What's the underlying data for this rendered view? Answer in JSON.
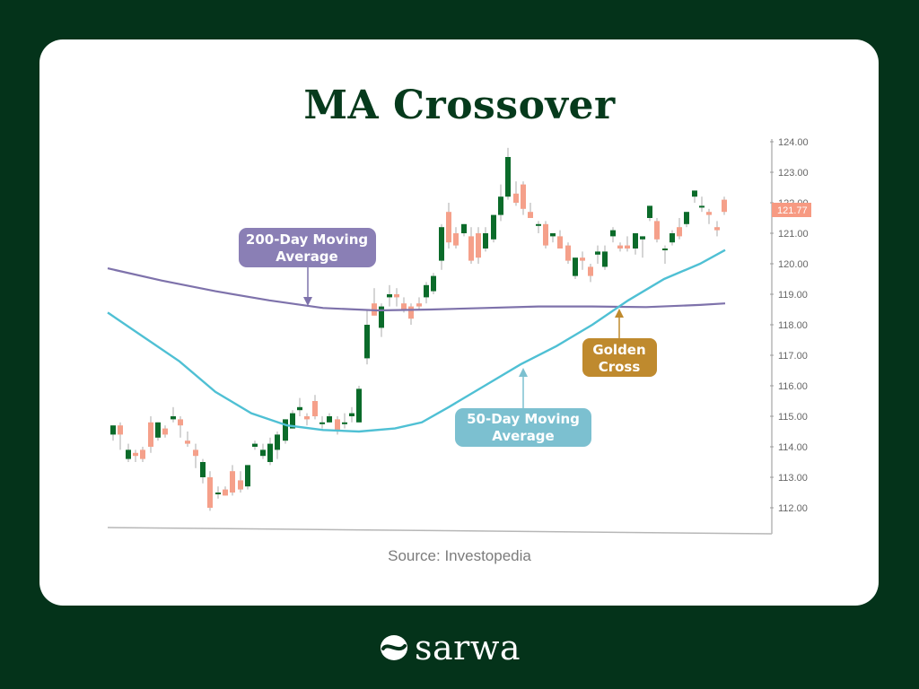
{
  "title": "MA Crossover",
  "source": "Source: Investopedia",
  "brand": {
    "name": "sarwa",
    "logo_icon": "sarwa-logo-icon"
  },
  "colors": {
    "background": "#04331a",
    "card": "#ffffff",
    "title": "#063a1c",
    "bull": "#0b6b2a",
    "bear": "#f5a08a",
    "ma200": "#7e72ab",
    "ma50": "#4fc0d4",
    "ma200_label": "#8a7fb5",
    "ma50_label": "#7cc0d0",
    "golden_label": "#bf8a2e",
    "price_tag": "#f79a82"
  },
  "annotations": [
    {
      "id": "ma200",
      "text_line1": "200-Day Moving",
      "text_line2": "Average"
    },
    {
      "id": "ma50",
      "text_line1": "50-Day Moving",
      "text_line2": "Average"
    },
    {
      "id": "golden",
      "text_line1": "Golden",
      "text_line2": "Cross"
    }
  ],
  "price_tag": "121.77",
  "chart_data": {
    "type": "candlestick",
    "title": "MA Crossover",
    "xlabel": "",
    "ylabel": "",
    "ylim": [
      111.5,
      124.2
    ],
    "y_ticks": [
      "124.00",
      "123.00",
      "122.00",
      "121.00",
      "120.00",
      "119.00",
      "118.00",
      "117.00",
      "116.00",
      "115.00",
      "114.00",
      "113.00",
      "112.00"
    ],
    "last_price": 121.77,
    "legend": [],
    "grid": false,
    "candles": [
      {
        "x": 126,
        "o": 114.4,
        "h": 114.7,
        "l": 114.2,
        "c": 114.7
      },
      {
        "x": 134,
        "o": 114.7,
        "h": 114.8,
        "l": 113.9,
        "c": 114.4
      },
      {
        "x": 143,
        "o": 113.6,
        "h": 114.1,
        "l": 113.5,
        "c": 113.9
      },
      {
        "x": 151,
        "o": 113.8,
        "h": 113.9,
        "l": 113.5,
        "c": 113.7
      },
      {
        "x": 159,
        "o": 113.9,
        "h": 114.0,
        "l": 113.5,
        "c": 113.6
      },
      {
        "x": 168,
        "o": 114.8,
        "h": 115.0,
        "l": 113.8,
        "c": 114.0
      },
      {
        "x": 176,
        "o": 114.3,
        "h": 114.8,
        "l": 114.2,
        "c": 114.8
      },
      {
        "x": 184,
        "o": 114.6,
        "h": 114.7,
        "l": 114.3,
        "c": 114.4
      },
      {
        "x": 193,
        "o": 114.9,
        "h": 115.3,
        "l": 114.8,
        "c": 115.0
      },
      {
        "x": 201,
        "o": 114.9,
        "h": 115.0,
        "l": 114.3,
        "c": 114.7
      },
      {
        "x": 209,
        "o": 114.2,
        "h": 114.5,
        "l": 114.0,
        "c": 114.1
      },
      {
        "x": 218,
        "o": 113.9,
        "h": 114.1,
        "l": 113.3,
        "c": 113.7
      },
      {
        "x": 226,
        "o": 113.0,
        "h": 113.6,
        "l": 112.8,
        "c": 113.5
      },
      {
        "x": 234,
        "o": 113.0,
        "h": 113.2,
        "l": 111.9,
        "c": 112.0
      },
      {
        "x": 243,
        "o": 112.5,
        "h": 112.7,
        "l": 112.3,
        "c": 112.5
      },
      {
        "x": 251,
        "o": 112.6,
        "h": 112.7,
        "l": 112.4,
        "c": 112.4
      },
      {
        "x": 259,
        "o": 113.2,
        "h": 113.4,
        "l": 112.4,
        "c": 112.5
      },
      {
        "x": 268,
        "o": 112.9,
        "h": 113.2,
        "l": 112.5,
        "c": 112.6
      },
      {
        "x": 276,
        "o": 112.7,
        "h": 113.4,
        "l": 112.6,
        "c": 113.4
      },
      {
        "x": 284,
        "o": 114.0,
        "h": 114.2,
        "l": 113.9,
        "c": 114.1
      },
      {
        "x": 293,
        "o": 113.7,
        "h": 114.1,
        "l": 113.6,
        "c": 113.9
      },
      {
        "x": 301,
        "o": 113.5,
        "h": 114.3,
        "l": 113.4,
        "c": 114.1
      },
      {
        "x": 309,
        "o": 113.9,
        "h": 114.5,
        "l": 113.6,
        "c": 114.4
      },
      {
        "x": 318,
        "o": 114.2,
        "h": 114.9,
        "l": 114.1,
        "c": 114.9
      },
      {
        "x": 326,
        "o": 114.6,
        "h": 115.2,
        "l": 114.6,
        "c": 115.1
      },
      {
        "x": 334,
        "o": 115.2,
        "h": 115.6,
        "l": 115.0,
        "c": 115.3
      },
      {
        "x": 342,
        "o": 115.0,
        "h": 115.1,
        "l": 114.7,
        "c": 114.9
      },
      {
        "x": 351,
        "o": 115.5,
        "h": 115.7,
        "l": 114.9,
        "c": 115.0
      },
      {
        "x": 359,
        "o": 114.8,
        "h": 115.0,
        "l": 114.6,
        "c": 114.8
      },
      {
        "x": 367,
        "o": 114.8,
        "h": 115.1,
        "l": 114.8,
        "c": 115.0
      },
      {
        "x": 376,
        "o": 114.9,
        "h": 115.0,
        "l": 114.4,
        "c": 114.5
      },
      {
        "x": 384,
        "o": 114.8,
        "h": 115.1,
        "l": 114.6,
        "c": 114.8
      },
      {
        "x": 392,
        "o": 115.0,
        "h": 115.3,
        "l": 114.8,
        "c": 115.1
      },
      {
        "x": 400,
        "o": 114.8,
        "h": 116.0,
        "l": 114.8,
        "c": 115.9
      },
      {
        "x": 409,
        "o": 116.9,
        "h": 118.5,
        "l": 116.7,
        "c": 118.0
      },
      {
        "x": 417,
        "o": 118.7,
        "h": 119.2,
        "l": 118.3,
        "c": 118.3
      },
      {
        "x": 425,
        "o": 117.9,
        "h": 118.7,
        "l": 117.6,
        "c": 118.6
      },
      {
        "x": 434,
        "o": 118.9,
        "h": 119.3,
        "l": 118.6,
        "c": 119.0
      },
      {
        "x": 442,
        "o": 119.0,
        "h": 119.2,
        "l": 118.6,
        "c": 118.9
      },
      {
        "x": 450,
        "o": 118.7,
        "h": 118.9,
        "l": 118.4,
        "c": 118.5
      },
      {
        "x": 458,
        "o": 118.6,
        "h": 118.7,
        "l": 118.0,
        "c": 118.2
      },
      {
        "x": 467,
        "o": 118.7,
        "h": 118.9,
        "l": 118.5,
        "c": 118.6
      },
      {
        "x": 475,
        "o": 118.9,
        "h": 119.4,
        "l": 118.7,
        "c": 119.3
      },
      {
        "x": 483,
        "o": 119.1,
        "h": 119.7,
        "l": 119.0,
        "c": 119.6
      },
      {
        "x": 492,
        "o": 120.1,
        "h": 121.3,
        "l": 119.8,
        "c": 121.2
      },
      {
        "x": 500,
        "o": 121.7,
        "h": 122.0,
        "l": 120.5,
        "c": 120.7
      },
      {
        "x": 508,
        "o": 121.0,
        "h": 121.2,
        "l": 120.5,
        "c": 120.6
      },
      {
        "x": 517,
        "o": 121.0,
        "h": 121.3,
        "l": 120.9,
        "c": 121.3
      },
      {
        "x": 525,
        "o": 120.9,
        "h": 121.2,
        "l": 120.0,
        "c": 120.1
      },
      {
        "x": 533,
        "o": 121.0,
        "h": 121.2,
        "l": 120.0,
        "c": 120.2
      },
      {
        "x": 541,
        "o": 120.5,
        "h": 121.2,
        "l": 120.4,
        "c": 121.0
      },
      {
        "x": 550,
        "o": 120.8,
        "h": 121.6,
        "l": 120.7,
        "c": 121.6
      },
      {
        "x": 558,
        "o": 121.6,
        "h": 122.6,
        "l": 121.4,
        "c": 122.2
      },
      {
        "x": 566,
        "o": 122.2,
        "h": 123.8,
        "l": 122.1,
        "c": 123.5
      },
      {
        "x": 575,
        "o": 122.3,
        "h": 122.7,
        "l": 121.9,
        "c": 122.0
      },
      {
        "x": 583,
        "o": 122.6,
        "h": 122.7,
        "l": 121.6,
        "c": 121.8
      },
      {
        "x": 591,
        "o": 121.7,
        "h": 122.0,
        "l": 121.5,
        "c": 121.5
      },
      {
        "x": 600,
        "o": 121.3,
        "h": 121.4,
        "l": 121.0,
        "c": 121.3
      },
      {
        "x": 608,
        "o": 121.3,
        "h": 121.4,
        "l": 120.5,
        "c": 120.6
      },
      {
        "x": 616,
        "o": 120.9,
        "h": 121.0,
        "l": 120.7,
        "c": 121.0
      },
      {
        "x": 624,
        "o": 120.9,
        "h": 121.1,
        "l": 120.5,
        "c": 120.5
      },
      {
        "x": 633,
        "o": 120.6,
        "h": 120.7,
        "l": 120.0,
        "c": 120.1
      },
      {
        "x": 641,
        "o": 119.6,
        "h": 120.2,
        "l": 119.5,
        "c": 120.2
      },
      {
        "x": 649,
        "o": 120.2,
        "h": 120.4,
        "l": 119.8,
        "c": 120.1
      },
      {
        "x": 658,
        "o": 119.9,
        "h": 120.0,
        "l": 119.4,
        "c": 119.6
      },
      {
        "x": 666,
        "o": 120.3,
        "h": 120.6,
        "l": 120.0,
        "c": 120.4
      },
      {
        "x": 674,
        "o": 119.9,
        "h": 120.6,
        "l": 119.8,
        "c": 120.4
      },
      {
        "x": 683,
        "o": 120.9,
        "h": 121.2,
        "l": 120.7,
        "c": 121.1
      },
      {
        "x": 691,
        "o": 120.6,
        "h": 120.7,
        "l": 120.4,
        "c": 120.5
      },
      {
        "x": 699,
        "o": 120.6,
        "h": 120.9,
        "l": 120.4,
        "c": 120.5
      },
      {
        "x": 708,
        "o": 120.5,
        "h": 121.0,
        "l": 120.3,
        "c": 121.0
      },
      {
        "x": 716,
        "o": 120.8,
        "h": 120.9,
        "l": 120.2,
        "c": 120.9
      },
      {
        "x": 724,
        "o": 121.5,
        "h": 121.9,
        "l": 121.4,
        "c": 121.9
      },
      {
        "x": 732,
        "o": 121.4,
        "h": 121.5,
        "l": 120.7,
        "c": 120.8
      },
      {
        "x": 741,
        "o": 120.5,
        "h": 120.6,
        "l": 120.0,
        "c": 120.5
      },
      {
        "x": 749,
        "o": 120.7,
        "h": 121.1,
        "l": 120.6,
        "c": 121.0
      },
      {
        "x": 757,
        "o": 121.2,
        "h": 121.5,
        "l": 120.8,
        "c": 120.9
      },
      {
        "x": 765,
        "o": 121.3,
        "h": 121.7,
        "l": 121.2,
        "c": 121.7
      },
      {
        "x": 774,
        "o": 122.2,
        "h": 122.4,
        "l": 122.0,
        "c": 122.4
      },
      {
        "x": 782,
        "o": 121.9,
        "h": 122.2,
        "l": 121.7,
        "c": 121.9
      },
      {
        "x": 790,
        "o": 121.7,
        "h": 121.8,
        "l": 121.3,
        "c": 121.6
      },
      {
        "x": 799,
        "o": 121.2,
        "h": 121.4,
        "l": 120.9,
        "c": 121.1
      },
      {
        "x": 807,
        "o": 122.1,
        "h": 122.2,
        "l": 121.6,
        "c": 121.7
      }
    ],
    "series": [
      {
        "name": "200-Day Moving Average",
        "points": [
          [
            120,
            119.85
          ],
          [
            180,
            119.45
          ],
          [
            240,
            119.1
          ],
          [
            300,
            118.8
          ],
          [
            360,
            118.55
          ],
          [
            420,
            118.47
          ],
          [
            480,
            118.5
          ],
          [
            540,
            118.55
          ],
          [
            600,
            118.6
          ],
          [
            660,
            118.6
          ],
          [
            720,
            118.58
          ],
          [
            780,
            118.65
          ],
          [
            808,
            118.7
          ]
        ]
      },
      {
        "name": "50-Day Moving Average",
        "points": [
          [
            120,
            118.4
          ],
          [
            160,
            117.6
          ],
          [
            200,
            116.8
          ],
          [
            240,
            115.8
          ],
          [
            280,
            115.1
          ],
          [
            320,
            114.7
          ],
          [
            360,
            114.55
          ],
          [
            400,
            114.5
          ],
          [
            440,
            114.6
          ],
          [
            470,
            114.8
          ],
          [
            500,
            115.3
          ],
          [
            540,
            116.0
          ],
          [
            580,
            116.7
          ],
          [
            620,
            117.3
          ],
          [
            660,
            118.0
          ],
          [
            700,
            118.8
          ],
          [
            740,
            119.5
          ],
          [
            780,
            120.0
          ],
          [
            808,
            120.45
          ]
        ]
      }
    ]
  }
}
